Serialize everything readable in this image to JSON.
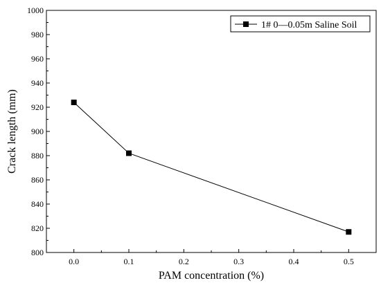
{
  "chart_data": {
    "type": "line",
    "xlabel": "PAM concentration (%)",
    "ylabel": "Crack length (mm)",
    "xlim": [
      -0.05,
      0.55
    ],
    "ylim": [
      800,
      1000
    ],
    "x_ticks": [
      "0.0",
      "0.1",
      "0.2",
      "0.3",
      "0.4",
      "0.5"
    ],
    "x_tick_values": [
      0.0,
      0.1,
      0.2,
      0.3,
      0.4,
      0.5
    ],
    "y_ticks": [
      "800",
      "820",
      "840",
      "860",
      "880",
      "900",
      "920",
      "940",
      "960",
      "980",
      "1000"
    ],
    "y_tick_values": [
      800,
      820,
      840,
      860,
      880,
      900,
      920,
      940,
      960,
      980,
      1000
    ],
    "grid": false,
    "legend_position": "top-right",
    "series": [
      {
        "name": "1# 0—0.05m Saline Soil",
        "marker": "square",
        "color": "#000000",
        "x": [
          0.0,
          0.1,
          0.5
        ],
        "y": [
          924,
          882,
          817
        ]
      }
    ]
  }
}
